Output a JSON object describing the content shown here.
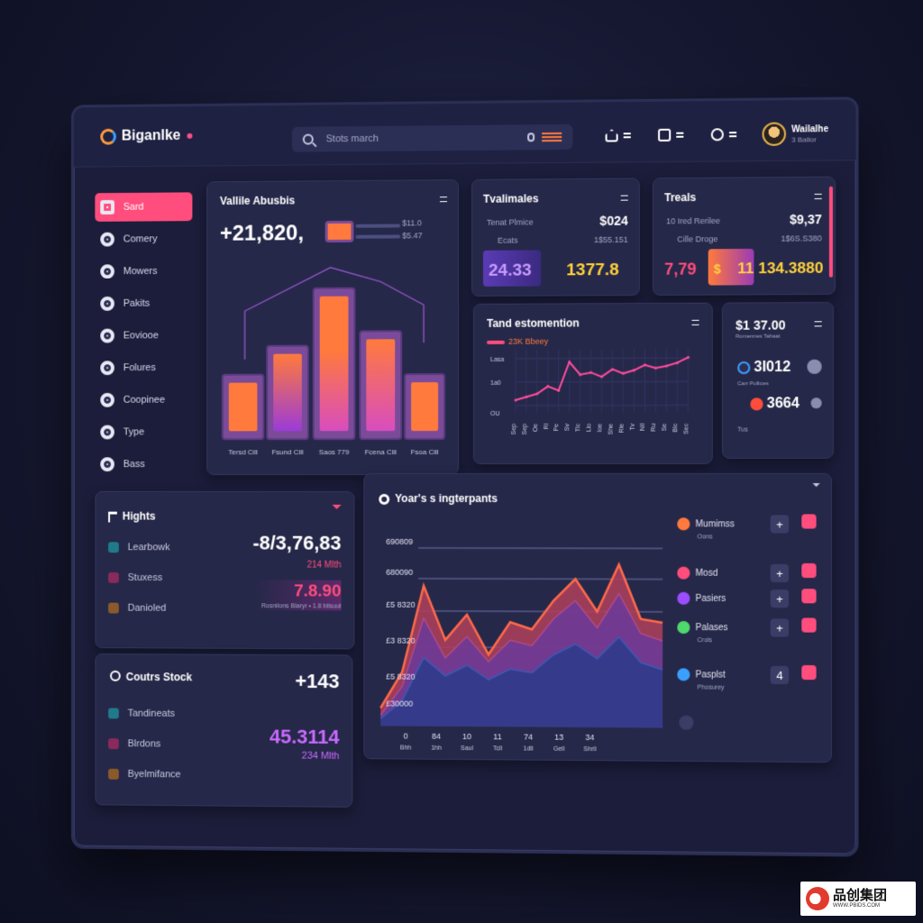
{
  "app": {
    "name": "Biganlke"
  },
  "search": {
    "placeholder": "Stots march"
  },
  "user": {
    "name": "Wailalhe",
    "sub": "3 Ballor"
  },
  "sidebar": {
    "items": [
      {
        "label": "Sard",
        "active": true
      },
      {
        "label": "Comery"
      },
      {
        "label": "Mowers"
      },
      {
        "label": "Pakits"
      },
      {
        "label": "Eoviooe"
      },
      {
        "label": "Folures"
      },
      {
        "label": "Coopinee"
      },
      {
        "label": "Type"
      },
      {
        "label": "Bass"
      }
    ]
  },
  "value_card": {
    "title": "Vallile Abusbis",
    "value": "+21,820,",
    "legend_a": "$11.0",
    "legend_b": "$5.47",
    "bar_labels": [
      "Tersd Cill",
      "Fsund Cill",
      "Saos 779",
      "Fcena Clil",
      "Fsoa Cill"
    ]
  },
  "tvalimales": {
    "title": "Tvalimales",
    "row1_label": "Tenat Plmice",
    "row1_value": "$024",
    "row2_label": "Ecats",
    "row2_value": "1$55.151",
    "big_left": "24.33",
    "big_right": "1377.8"
  },
  "treals": {
    "title": "Treals",
    "row1_label": "10 Ired Rerilee",
    "row1_value": "$9,37",
    "row2_label": "Cille Droge",
    "row2_value": "1$6S.S380",
    "big_left": "7,79",
    "big_mid": "$",
    "big_right": "11 134.3880"
  },
  "trend": {
    "title": "Tand estomention",
    "legend": "23K Bbeey",
    "ylabels": [
      "Lasa",
      "1a0",
      "OU"
    ],
    "xlabels": [
      "Sep",
      "Sep",
      "Oe",
      "Rl",
      "Pe",
      "Sv",
      "Tlc",
      "Llo",
      "Ioe",
      "She",
      "Rle",
      "Tv",
      "Nll",
      "Ru",
      "Se",
      "Blc",
      "Sec"
    ],
    "chart_data": {
      "type": "line",
      "y": [
        22,
        25,
        28,
        35,
        31,
        58,
        46,
        48,
        44,
        51,
        47,
        50,
        55,
        52,
        54,
        57,
        62
      ]
    }
  },
  "mini": {
    "value": "$1 37.00",
    "sub": "Romennes Tahaat",
    "row1": "3I012",
    "row2": "3664",
    "row2_sub": "Carr Pollices",
    "row2_b": "Tus"
  },
  "highs": {
    "title": "Hights",
    "value": "-8/3,76,83",
    "value_sub": "214 Mlth",
    "value2": "7.8.90",
    "value2_sub": "Rosnilons Blaryr • 1.8 bilsuut",
    "legend": [
      "Learbowk",
      "Stuxess",
      "Danioled"
    ]
  },
  "courts": {
    "title": "Coutrs Stock",
    "value": "+143",
    "value2": "45.3114",
    "value2_sub": "234 Mlth",
    "legend": [
      "Tandineats",
      "Blrdons",
      "Byelmifance"
    ]
  },
  "years": {
    "title": "Yoar's s ingterpants",
    "ylabels": [
      "690809",
      "680090",
      "£5 8320",
      "£3 8320",
      "£5 8320",
      "£30000"
    ],
    "xlabels_top": [
      "0",
      "84",
      "10",
      "11",
      "74",
      "13",
      "34"
    ],
    "xlabels_bottom": [
      "Bhh",
      "1hh",
      "Saul",
      "Tcll",
      "1dll",
      "Gell",
      "Shrll"
    ],
    "chart_data": {
      "type": "area",
      "series": [
        {
          "values": [
            10,
            30,
            78,
            48,
            62,
            40,
            58,
            54,
            70,
            82,
            64,
            90,
            60,
            58
          ]
        },
        {
          "values": [
            6,
            22,
            60,
            38,
            50,
            36,
            48,
            45,
            60,
            70,
            55,
            74,
            52,
            48
          ]
        },
        {
          "values": [
            4,
            14,
            38,
            28,
            34,
            26,
            32,
            30,
            40,
            46,
            38,
            50,
            36,
            32
          ]
        }
      ]
    }
  },
  "members": {
    "items": [
      {
        "label": "Mumimss",
        "sub": "Oons",
        "color": "#ff7a3c",
        "action": "+"
      },
      {
        "label": "Mosd",
        "sub": "",
        "color": "#ff4d7d",
        "action": "+"
      },
      {
        "label": "Pasiers",
        "sub": "",
        "color": "#9b4dff",
        "action": "+"
      },
      {
        "label": "Palases",
        "sub": "Crols",
        "color": "#4dd96b",
        "action": "+"
      },
      {
        "label": "Pasplst",
        "sub": "Phosurey",
        "color": "#3aa0ff",
        "action": "4"
      }
    ]
  },
  "watermark": {
    "title": "品创集团",
    "url": "WWW.PBIDS.COM"
  }
}
